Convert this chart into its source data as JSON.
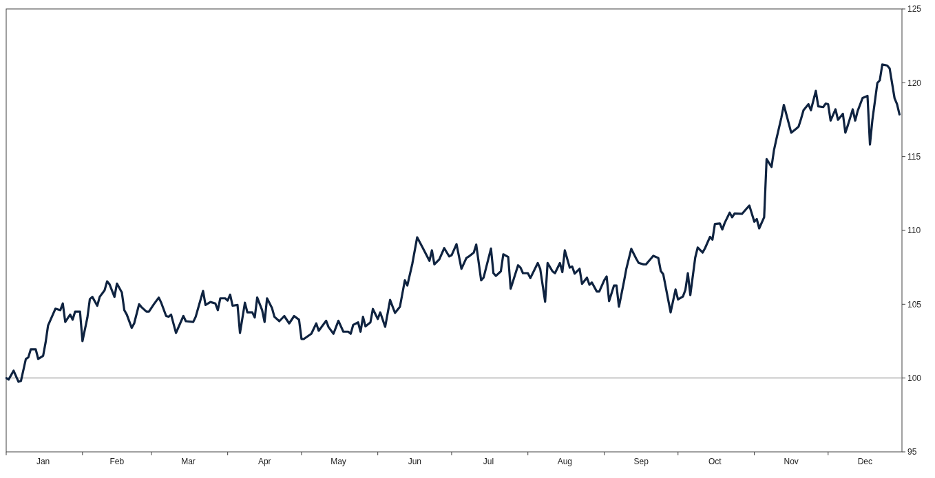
{
  "chart_data": {
    "type": "line",
    "color": "#0f2340",
    "line_style": "solid",
    "marker": "none",
    "grid": false,
    "x": [
      "--01-01",
      "--01-02",
      "--01-04",
      "--01-06",
      "--01-07",
      "--01-09",
      "--01-10",
      "--01-11",
      "--01-13",
      "--01-14",
      "--01-16",
      "--01-17",
      "--01-18",
      "--01-21",
      "--01-23",
      "--01-24",
      "--01-25",
      "--01-27",
      "--01-28",
      "--01-29",
      "--01-31",
      "--02-01",
      "--02-03",
      "--02-04",
      "--02-05",
      "--02-07",
      "--02-08",
      "--02-10",
      "--02-11",
      "--02-12",
      "--02-14",
      "--02-15",
      "--02-17",
      "--02-18",
      "--02-19",
      "--02-21",
      "--02-22",
      "--02-24",
      "--02-25",
      "--02-27",
      "--02-28",
      "--03-02",
      "--03-04",
      "--03-05",
      "--03-07",
      "--03-08",
      "--03-09",
      "--03-11",
      "--03-14",
      "--03-15",
      "--03-18",
      "--03-19",
      "--03-22",
      "--03-23",
      "--03-25",
      "--03-27",
      "--03-28",
      "--03-29",
      "--03-31",
      "--04-01",
      "--04-02",
      "--04-03",
      "--04-05",
      "--04-06",
      "--04-08",
      "--04-09",
      "--04-11",
      "--04-12",
      "--04-13",
      "--04-15",
      "--04-16",
      "--04-17",
      "--04-19",
      "--04-20",
      "--04-22",
      "--04-24",
      "--04-26",
      "--04-28",
      "--04-30",
      "--05-01",
      "--05-02",
      "--05-05",
      "--05-07",
      "--05-08",
      "--05-11",
      "--05-12",
      "--05-14",
      "--05-16",
      "--05-18",
      "--05-20",
      "--05-21",
      "--05-22",
      "--05-24",
      "--05-25",
      "--05-26",
      "--05-27",
      "--05-29",
      "--05-30",
      "--06-01",
      "--06-02",
      "--06-04",
      "--06-06",
      "--06-08",
      "--06-10",
      "--06-12",
      "--06-13",
      "--06-15",
      "--06-17",
      "--06-19",
      "--06-22",
      "--06-23",
      "--06-24",
      "--06-26",
      "--06-28",
      "--06-30",
      "--07-01",
      "--07-03",
      "--07-05",
      "--07-07",
      "--07-08",
      "--07-10",
      "--07-11",
      "--07-13",
      "--07-14",
      "--07-17",
      "--07-18",
      "--07-19",
      "--07-21",
      "--07-22",
      "--07-24",
      "--07-25",
      "--07-28",
      "--07-29",
      "--07-30",
      "--08-01",
      "--08-02",
      "--08-05",
      "--08-06",
      "--08-08",
      "--08-09",
      "--08-11",
      "--08-12",
      "--08-14",
      "--08-15",
      "--08-16",
      "--08-18",
      "--08-19",
      "--08-20",
      "--08-22",
      "--08-23",
      "--08-25",
      "--08-26",
      "--08-27",
      "--08-29",
      "--08-30",
      "--09-01",
      "--09-02",
      "--09-03",
      "--09-05",
      "--09-06",
      "--09-07",
      "--09-09",
      "--09-10",
      "--09-12",
      "--09-14",
      "--09-15",
      "--09-17",
      "--09-18",
      "--09-20",
      "--09-21",
      "--09-23",
      "--09-24",
      "--09-25",
      "--09-28",
      "--09-30",
      "--10-01",
      "--10-03",
      "--10-04",
      "--10-05",
      "--10-06",
      "--10-08",
      "--10-09",
      "--10-11",
      "--10-12",
      "--10-14",
      "--10-15",
      "--10-16",
      "--10-18",
      "--10-19",
      "--10-20",
      "--10-22",
      "--10-23",
      "--10-24",
      "--10-27",
      "--10-29",
      "--10-30",
      "--11-01",
      "--11-02",
      "--11-03",
      "--11-05",
      "--11-06",
      "--11-08",
      "--11-09",
      "--11-10",
      "--11-12",
      "--11-13",
      "--11-16",
      "--11-18",
      "--11-19",
      "--11-20",
      "--11-21",
      "--11-23",
      "--11-24",
      "--11-26",
      "--11-27",
      "--11-29",
      "--11-30",
      "--12-01",
      "--12-02",
      "--12-04",
      "--12-05",
      "--12-07",
      "--12-08",
      "--12-09",
      "--12-11",
      "--12-12",
      "--12-13",
      "--12-15",
      "--12-17",
      "--12-18",
      "--12-19",
      "--12-21",
      "--12-22",
      "--12-23",
      "--12-25",
      "--12-26",
      "--12-28",
      "--12-29",
      "--12-30"
    ],
    "values": [
      100.0,
      99.9,
      100.5,
      99.75,
      99.8,
      101.3,
      101.4,
      101.95,
      101.95,
      101.3,
      101.5,
      102.4,
      103.55,
      104.7,
      104.6,
      105.05,
      103.8,
      104.3,
      103.95,
      104.5,
      104.5,
      102.5,
      104.1,
      105.35,
      105.5,
      104.9,
      105.5,
      105.95,
      106.55,
      106.35,
      105.5,
      106.4,
      105.8,
      104.6,
      104.3,
      103.4,
      103.7,
      105.0,
      104.8,
      104.5,
      104.5,
      105.0,
      105.45,
      105.1,
      104.2,
      104.15,
      104.3,
      103.05,
      104.2,
      103.85,
      103.8,
      104.15,
      105.9,
      104.95,
      105.15,
      105.05,
      104.6,
      105.4,
      105.4,
      105.25,
      105.65,
      104.9,
      104.95,
      103.05,
      105.1,
      104.45,
      104.45,
      104.1,
      105.45,
      104.6,
      103.8,
      105.4,
      104.75,
      104.15,
      103.85,
      104.2,
      103.7,
      104.2,
      103.95,
      102.65,
      102.65,
      103.0,
      103.7,
      103.2,
      103.88,
      103.45,
      103.0,
      103.88,
      103.14,
      103.14,
      103.0,
      103.6,
      103.77,
      103.14,
      104.15,
      103.5,
      103.77,
      104.68,
      104.0,
      104.45,
      103.47,
      105.29,
      104.41,
      104.83,
      106.62,
      106.27,
      107.71,
      109.53,
      108.9,
      107.94,
      108.65,
      107.7,
      108.04,
      108.8,
      108.24,
      108.32,
      109.07,
      107.4,
      108.13,
      108.23,
      108.5,
      109.04,
      106.62,
      106.8,
      108.77,
      107.1,
      106.92,
      107.23,
      108.38,
      108.2,
      106.05,
      107.64,
      107.48,
      107.1,
      107.1,
      106.77,
      107.79,
      107.4,
      105.17,
      107.79,
      107.23,
      107.1,
      107.79,
      107.18,
      108.65,
      107.48,
      107.55,
      107.07,
      107.4,
      106.38,
      106.8,
      106.32,
      106.47,
      105.86,
      105.86,
      106.62,
      106.88,
      105.21,
      106.27,
      106.27,
      104.83,
      106.5,
      107.4,
      108.75,
      108.09,
      107.8,
      107.7,
      107.7,
      108.09,
      108.28,
      108.13,
      107.25,
      107.03,
      104.45,
      106.0,
      105.32,
      105.52,
      105.97,
      107.1,
      105.62,
      108.16,
      108.84,
      108.5,
      108.8,
      109.56,
      109.38,
      110.44,
      110.47,
      110.06,
      110.52,
      111.2,
      110.89,
      111.15,
      111.12,
      111.5,
      111.68,
      110.59,
      110.77,
      110.14,
      110.89,
      114.83,
      114.3,
      115.44,
      116.2,
      117.64,
      118.5,
      116.62,
      116.88,
      117.03,
      117.56,
      118.14,
      118.55,
      118.14,
      119.45,
      118.4,
      118.35,
      118.59,
      118.55,
      117.44,
      118.2,
      117.49,
      117.9,
      116.62,
      117.11,
      118.2,
      117.44,
      118.09,
      118.97,
      119.11,
      115.82,
      117.49,
      119.98,
      120.17,
      121.23,
      121.17,
      120.97,
      118.95,
      118.55,
      117.86
    ],
    "xlim": [
      "--01-01",
      "--12-31"
    ],
    "xticks": [
      {
        "value": "--01-01",
        "label": null
      },
      {
        "value": "--01-16",
        "label": "Jan"
      },
      {
        "value": "--02-01",
        "label": null
      },
      {
        "value": "--02-15",
        "label": "Feb"
      },
      {
        "value": "--03-01",
        "label": null
      },
      {
        "value": "--03-16",
        "label": "Mar"
      },
      {
        "value": "--04-01",
        "label": null
      },
      {
        "value": "--04-16",
        "label": "Apr"
      },
      {
        "value": "--05-01",
        "label": null
      },
      {
        "value": "--05-16",
        "label": "May"
      },
      {
        "value": "--06-01",
        "label": null
      },
      {
        "value": "--06-16",
        "label": "Jun"
      },
      {
        "value": "--07-01",
        "label": null
      },
      {
        "value": "--07-16",
        "label": "Jul"
      },
      {
        "value": "--08-01",
        "label": null
      },
      {
        "value": "--08-16",
        "label": "Aug"
      },
      {
        "value": "--09-01",
        "label": null
      },
      {
        "value": "--09-16",
        "label": "Sep"
      },
      {
        "value": "--10-01",
        "label": null
      },
      {
        "value": "--10-16",
        "label": "Oct"
      },
      {
        "value": "--11-01",
        "label": null
      },
      {
        "value": "--11-16",
        "label": "Nov"
      },
      {
        "value": "--12-01",
        "label": null
      },
      {
        "value": "--12-16",
        "label": "Dec"
      }
    ],
    "ylim": [
      95,
      125
    ],
    "yticks": [
      95,
      100,
      105,
      110,
      115,
      120,
      125
    ],
    "ref_lines": [
      {
        "axis": "y",
        "value": 100,
        "color": "#808080"
      }
    ]
  }
}
